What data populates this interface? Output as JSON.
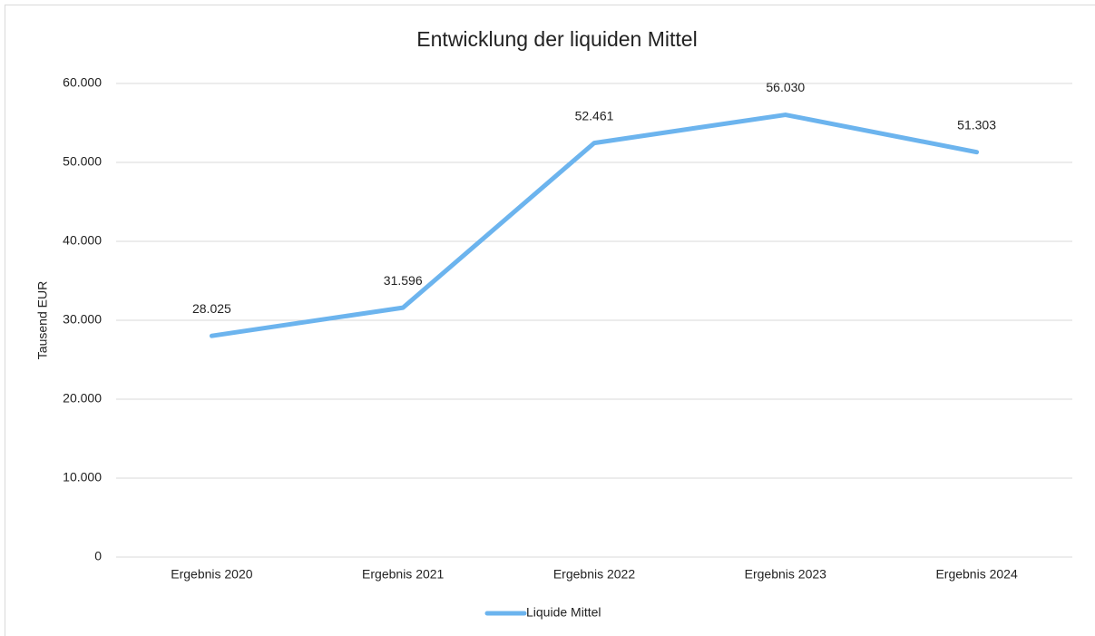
{
  "chart_data": {
    "type": "line",
    "title": "Entwicklung der liquiden Mittel",
    "y_label": "Tausend EUR",
    "categories": [
      "Ergebnis 2020",
      "Ergebnis 2021",
      "Ergebnis 2022",
      "Ergebnis 2023",
      "Ergebnis 2024"
    ],
    "series": [
      {
        "name": "Liquide Mittel",
        "color": "#6cb4ee",
        "values": [
          28025,
          31596,
          52461,
          56030,
          51303
        ],
        "value_labels": [
          "28.025",
          "31.596",
          "52.461",
          "56.030",
          "51.303"
        ]
      }
    ],
    "ylim": [
      0,
      60000
    ],
    "yticks": [
      0,
      {
        "value": 10000,
        "label": "10.000"
      },
      {
        "value": 20000,
        "label": "20.000"
      },
      {
        "value": 30000,
        "label": "30.000"
      },
      {
        "value": 40000,
        "label": "40.000"
      },
      {
        "value": 50000,
        "label": "50.000"
      },
      {
        "value": 60000,
        "label": "60.000"
      }
    ],
    "grid": true,
    "legend": "bottom"
  }
}
